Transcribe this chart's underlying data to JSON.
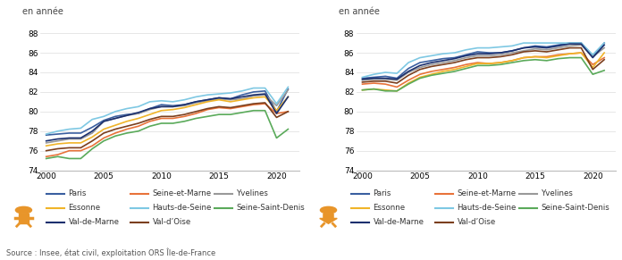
{
  "years": [
    2000,
    2001,
    2002,
    2003,
    2004,
    2005,
    2006,
    2007,
    2008,
    2009,
    2010,
    2011,
    2012,
    2013,
    2014,
    2015,
    2016,
    2017,
    2018,
    2019,
    2020,
    2021
  ],
  "men": {
    "Paris": [
      77.6,
      77.7,
      77.8,
      77.8,
      78.4,
      79.1,
      79.5,
      79.7,
      79.8,
      80.3,
      80.7,
      80.6,
      80.7,
      81.0,
      81.2,
      81.4,
      81.3,
      81.7,
      82.0,
      82.1,
      80.0,
      82.3
    ],
    "Seine-et-Marne": [
      75.4,
      75.6,
      76.0,
      76.0,
      76.5,
      77.3,
      77.8,
      78.2,
      78.5,
      79.0,
      79.3,
      79.3,
      79.5,
      79.8,
      80.2,
      80.4,
      80.3,
      80.5,
      80.7,
      80.8,
      79.8,
      80.0
    ],
    "Yvelines": [
      76.8,
      77.0,
      77.2,
      77.2,
      77.8,
      79.0,
      79.3,
      79.6,
      79.8,
      80.2,
      80.5,
      80.5,
      80.6,
      80.9,
      81.1,
      81.3,
      81.2,
      81.3,
      81.6,
      81.7,
      80.6,
      82.2
    ],
    "Essonne": [
      76.5,
      76.7,
      76.8,
      76.8,
      77.4,
      78.2,
      78.6,
      79.0,
      79.3,
      79.7,
      80.1,
      80.2,
      80.4,
      80.7,
      81.0,
      81.2,
      81.0,
      81.2,
      81.4,
      81.5,
      80.1,
      81.5
    ],
    "Hauts-de-Seine": [
      77.7,
      78.0,
      78.2,
      78.3,
      79.2,
      79.5,
      80.0,
      80.3,
      80.5,
      81.0,
      81.1,
      81.0,
      81.2,
      81.5,
      81.7,
      81.8,
      81.9,
      82.1,
      82.4,
      82.4,
      80.8,
      82.5
    ],
    "Seine-Saint-Denis": [
      75.2,
      75.4,
      75.2,
      75.2,
      76.2,
      77.0,
      77.5,
      77.8,
      78.0,
      78.5,
      78.8,
      78.8,
      79.0,
      79.3,
      79.5,
      79.7,
      79.7,
      79.9,
      80.1,
      80.1,
      77.3,
      78.2
    ],
    "Val-de-Marne": [
      77.0,
      77.2,
      77.3,
      77.3,
      78.0,
      79.0,
      79.3,
      79.6,
      79.9,
      80.3,
      80.5,
      80.5,
      80.7,
      81.0,
      81.2,
      81.4,
      81.3,
      81.5,
      81.7,
      81.8,
      79.8,
      81.5
    ],
    "Val-d-Oise": [
      76.0,
      76.2,
      76.3,
      76.3,
      77.0,
      77.8,
      78.2,
      78.5,
      78.8,
      79.2,
      79.5,
      79.5,
      79.7,
      80.0,
      80.3,
      80.5,
      80.4,
      80.6,
      80.8,
      80.9,
      79.4,
      80.0
    ]
  },
  "women": {
    "Paris": [
      83.4,
      83.5,
      83.6,
      83.4,
      84.4,
      85.0,
      85.2,
      85.4,
      85.5,
      85.8,
      86.1,
      86.0,
      86.0,
      86.2,
      86.5,
      86.7,
      86.6,
      86.8,
      87.0,
      87.0,
      85.7,
      87.0
    ],
    "Seine-et-Marne": [
      82.8,
      82.9,
      82.8,
      82.5,
      83.2,
      83.8,
      84.1,
      84.3,
      84.5,
      84.8,
      85.0,
      84.9,
      85.0,
      85.2,
      85.5,
      85.6,
      85.6,
      85.8,
      85.9,
      86.0,
      84.8,
      85.5
    ],
    "Yvelines": [
      83.2,
      83.3,
      83.3,
      83.2,
      84.0,
      84.5,
      84.8,
      85.0,
      85.2,
      85.5,
      85.7,
      85.7,
      85.8,
      86.0,
      86.2,
      86.4,
      86.3,
      86.5,
      86.7,
      86.8,
      85.6,
      86.5
    ],
    "Essonne": [
      82.2,
      82.3,
      82.2,
      82.1,
      82.9,
      83.5,
      83.8,
      84.1,
      84.3,
      84.6,
      84.9,
      84.9,
      85.0,
      85.2,
      85.5,
      85.6,
      85.5,
      85.7,
      85.9,
      86.0,
      84.5,
      86.0
    ],
    "Hauts-de-Seine": [
      83.5,
      83.8,
      84.0,
      83.9,
      85.0,
      85.5,
      85.7,
      85.9,
      86.0,
      86.3,
      86.5,
      86.5,
      86.6,
      86.7,
      87.0,
      87.0,
      87.0,
      87.0,
      87.0,
      87.0,
      85.8,
      87.0
    ],
    "Seine-Saint-Denis": [
      82.2,
      82.3,
      82.1,
      82.1,
      82.8,
      83.4,
      83.7,
      83.9,
      84.1,
      84.4,
      84.7,
      84.7,
      84.8,
      85.0,
      85.2,
      85.3,
      85.2,
      85.4,
      85.5,
      85.5,
      83.8,
      84.2
    ],
    "Val-de-Marne": [
      83.3,
      83.4,
      83.4,
      83.3,
      84.1,
      84.7,
      85.0,
      85.2,
      85.4,
      85.7,
      85.9,
      85.9,
      86.0,
      86.2,
      86.5,
      86.6,
      86.5,
      86.7,
      86.9,
      86.9,
      85.5,
      86.8
    ],
    "Val-d-Oise": [
      83.0,
      83.1,
      83.1,
      82.9,
      83.7,
      84.3,
      84.6,
      84.8,
      85.0,
      85.3,
      85.5,
      85.5,
      85.6,
      85.8,
      86.1,
      86.2,
      86.1,
      86.3,
      86.5,
      86.5,
      84.3,
      85.3
    ]
  },
  "series_colors": {
    "Paris": "#3a5fa0",
    "Seine-et-Marne": "#e8733a",
    "Yvelines": "#999999",
    "Essonne": "#f0b429",
    "Hauts-de-Seine": "#7ec8e3",
    "Seine-Saint-Denis": "#5aaa5a",
    "Val-de-Marne": "#1a2f6e",
    "Val-d-Oise": "#7b3f1e"
  },
  "legend_labels": {
    "Val-d-Oise": "Val-d'Oise"
  },
  "ylim": [
    74,
    89
  ],
  "yticks": [
    74,
    76,
    78,
    80,
    82,
    84,
    86,
    88
  ],
  "xlim": [
    1999.5,
    2022
  ],
  "xticks": [
    2000,
    2005,
    2010,
    2015,
    2020
  ],
  "ylabel": "en année",
  "source": "Source : Insee, état civil, exploitation ORS Île-de-France",
  "legend_order": [
    "Paris",
    "Seine-et-Marne",
    "Yvelines",
    "Essonne",
    "Hauts-de-Seine",
    "Seine-Saint-Denis",
    "Val-de-Marne",
    "Val-d-Oise"
  ],
  "legend_display": [
    "Paris",
    "Seine-et-Marne",
    "Yvelines",
    "Essonne",
    "Hauts-de-Seine",
    "Seine-Saint-Denis",
    "Val-de-Marne",
    "Val-d’Oise"
  ],
  "icon_color": "#e8952a",
  "background_color": "#ffffff",
  "linewidth": 1.2
}
